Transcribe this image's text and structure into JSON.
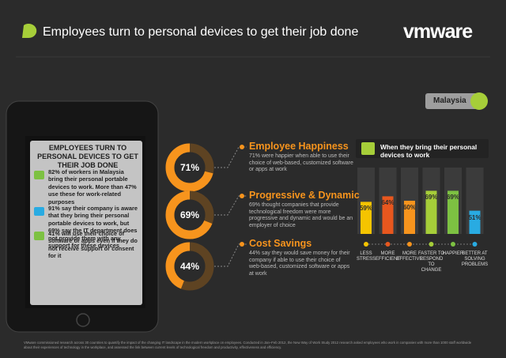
{
  "header": {
    "title": "Employees turn to personal devices to get their job done",
    "logo": "vmware"
  },
  "region": "Malaysia",
  "tablet": {
    "title": "EMPLOYEES TURN TO PERSONAL DEVICES TO GET THEIR JOB DONE",
    "items": [
      "82% of workers in Malaysia bring their personal portable devices to work. More than 47% use these for work-related purposes",
      "91% say their company is aware that they bring their personal portable devices to work, but 69% say the IT department does not provide them with any support for these devices",
      "41% will use their choice of software or apps even if they do not receive support or consent for it"
    ]
  },
  "chart_data": [
    {
      "type": "pie",
      "title": "Employee Happiness",
      "text": "71% were happier when able to use their choice of web-based, customized software or apps at work",
      "values": [
        71
      ],
      "value_labels": [
        "71%"
      ],
      "color": "#f7941d"
    },
    {
      "type": "pie",
      "title": "Progressive & Dynamic",
      "text": "69% thought companies that provide technological freedom were more progressive and dynamic and would be an employer of choice",
      "values": [
        69
      ],
      "value_labels": [
        "69%"
      ],
      "color": "#f7941d"
    },
    {
      "type": "pie",
      "title": "Cost Savings",
      "text": "44% say they would save money for their company if able to use their choice of web-based, customized software or apps at work",
      "values": [
        44
      ],
      "value_labels": [
        "44%"
      ],
      "color": "#f7941d"
    },
    {
      "type": "bar",
      "title": "When they bring their personal devices to work",
      "categories": [
        "LESS STRESS",
        "MORE EFFICIENT",
        "MORE EFFECTIVE",
        "FASTER TO RESPOND TO CHANGE",
        "HAPPIER",
        "BETTER AT SOLVING PROBLEMS"
      ],
      "values": [
        59,
        64,
        60,
        69,
        69,
        51
      ],
      "value_labels": [
        "59%",
        "64%",
        "60%",
        "69%",
        "69%",
        "51%"
      ],
      "colors": [
        "#f5c400",
        "#e8571e",
        "#f7941d",
        "#a6ce39",
        "#7dc142",
        "#29abe2"
      ],
      "ylim": [
        30,
        90
      ]
    }
  ],
  "footer": [
    "VMware commissioned research across 30 countries to quantify the impact of the changing IT landscape in the modern workplace on employees. Conducted in Jan–Feb 2012, the New Way of Work Study 2012 research asked employees who work in companies with more than 1000 staff worldwide",
    "about their experiences of technology in the workplace, and assessed the link between current levels of technological freedom and productivity, effectiveness and efficiency."
  ]
}
